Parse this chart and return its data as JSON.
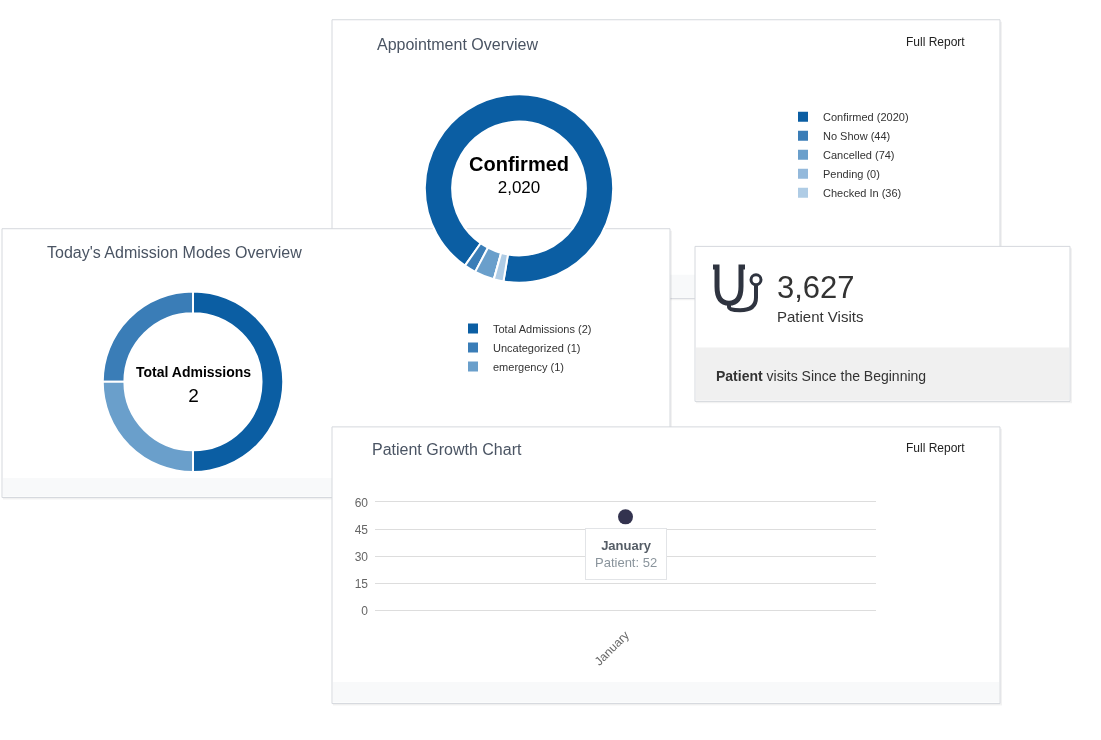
{
  "chart_data": [
    {
      "type": "donut",
      "title": "Appointment Overview",
      "categories": [
        "Confirmed (2020)",
        "No Show (44)",
        "Cancelled (74)",
        "Pending (0)",
        "Checked In (36)"
      ],
      "values": [
        2020,
        44,
        74,
        0,
        36
      ],
      "colors": [
        "#0b5ea3",
        "#3a7db7",
        "#6a9fcb",
        "#94b9db",
        "#afcce5"
      ],
      "legend": "right",
      "annotations": [
        "Confirmed\n2,020",
        "Full Report"
      ]
    },
    {
      "type": "donut",
      "title": "Today's Admission Modes Overview",
      "categories": [
        "Total Admissions (2)",
        "Uncategorized (1)",
        "emergency (1)"
      ],
      "values": [
        2,
        1,
        1
      ],
      "colors": [
        "#0b5ea3",
        "#3a7db7",
        "#6a9fcb"
      ],
      "legend": "right",
      "annotations": [
        "Total Admissions\n2"
      ]
    },
    {
      "type": "other",
      "title": "3,627",
      "subtitle": "Patient Visits",
      "annotations": [
        "Patient visits Since the Beginning"
      ]
    },
    {
      "type": "scatter",
      "title": "Patient Growth Chart",
      "categories": [
        "January"
      ],
      "values": [
        52
      ],
      "color": "#33334f",
      "marker": "circle",
      "ylim": [
        0,
        60
      ],
      "yticks": [
        0,
        15,
        30,
        45,
        60
      ],
      "grid": "y",
      "annotations": [
        "Full Report",
        "January",
        {
          "text": "Patient: 52",
          "x": "January",
          "y": 52
        }
      ]
    }
  ]
}
